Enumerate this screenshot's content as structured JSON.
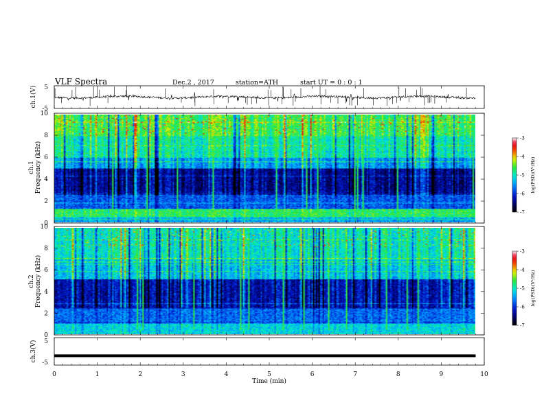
{
  "header": {
    "title": "VLF  Spectra",
    "date": "Dec.2 , 2017",
    "station": "station=ATH",
    "start": "start  UT  =    0 : 0  : 1"
  },
  "chart_data": [
    {
      "type": "line",
      "panel": "ch1-waveform",
      "ylabel": "ch.1(V)",
      "ylim": [
        -5,
        5
      ],
      "y_ticks": [
        "5",
        "-5"
      ],
      "xlim": [
        0,
        10
      ],
      "signal_level": 0,
      "color": "#000000"
    },
    {
      "type": "heatmap",
      "panel": "ch1-spectrogram",
      "ylabel": "ch.1\nFrequency  (kHz)",
      "ylim": [
        0,
        10
      ],
      "y_ticks": [
        "0",
        "2",
        "4",
        "6",
        "8",
        "10"
      ],
      "xlim": [
        0,
        10
      ],
      "data_extent_min": 9.8,
      "colorbar": {
        "label": "log(PSD)(V²/Hz)",
        "range": [
          -7,
          -3
        ],
        "ticks": [
          "-3",
          "-4",
          "-5",
          "-6",
          "-7"
        ]
      }
    },
    {
      "type": "heatmap",
      "panel": "ch2-spectrogram",
      "ylabel": "ch.2\nFrequency  (kHz)",
      "ylim": [
        0,
        10
      ],
      "y_ticks": [
        "0",
        "2",
        "4",
        "6",
        "8",
        "10"
      ],
      "xlim": [
        0,
        10
      ],
      "data_extent_min": 9.8,
      "colorbar": {
        "label": "log(PSD)(V²/Hz)",
        "range": [
          -7,
          -3
        ],
        "ticks": [
          "-3",
          "-4",
          "-5",
          "-6",
          "-7"
        ]
      }
    },
    {
      "type": "line",
      "panel": "ch3-waveform",
      "ylabel": "ch.3(V)",
      "ylim": [
        -5,
        5
      ],
      "y_ticks": [
        "5",
        "-5"
      ],
      "xlim": [
        0,
        10
      ],
      "signal_level": -1.6,
      "color": "#000000"
    }
  ],
  "x_axis": {
    "label": "Time  (min)",
    "ticks": [
      "0",
      "1",
      "2",
      "3",
      "4",
      "5",
      "6",
      "7",
      "8",
      "9",
      "10"
    ]
  }
}
